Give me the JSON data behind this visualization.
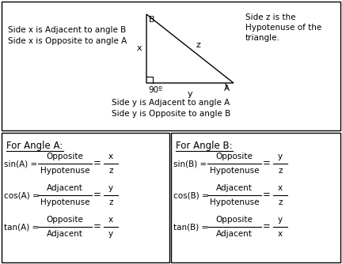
{
  "bg_color": "#ffffff",
  "font_family": "DejaVu Sans",
  "top_section": {
    "left_text_line1": "Side x is Adjacent to angle B",
    "left_text_line2": "Side x is Opposite to angle A",
    "right_text_line1": "Side z is the",
    "right_text_line2": "Hypotenuse of the",
    "right_text_line3": "triangle.",
    "bottom_text_line1": "Side y is Adjacent to angle A",
    "bottom_text_line2": "Side y is Opposite to angle B"
  },
  "angle_a": {
    "header": "For Angle A:",
    "sin_label": "sin(A) =",
    "sin_num": "Opposite",
    "sin_den": "Hypotenuse",
    "sin_num2": "x",
    "sin_den2": "z",
    "cos_label": "cos(A) =",
    "cos_num": "Adjacent",
    "cos_den": "Hypotenuse",
    "cos_num2": "y",
    "cos_den2": "z",
    "tan_label": "tan(A) =",
    "tan_num": "Opposite",
    "tan_den": "Adjacent",
    "tan_num2": "x",
    "tan_den2": "y"
  },
  "angle_b": {
    "header": "For Angle B:",
    "sin_label": "sin(B) =",
    "sin_num": "Opposite",
    "sin_den": "Hypotenuse",
    "sin_num2": "y",
    "sin_den2": "z",
    "cos_label": "cos(B) =",
    "cos_num": "Adjacent",
    "cos_den": "Hypotenuse",
    "cos_num2": "x",
    "cos_den2": "z",
    "tan_label": "tan(B) =",
    "tan_num": "Opposite",
    "tan_den": "Adjacent",
    "tan_num2": "y",
    "tan_den2": "x"
  }
}
